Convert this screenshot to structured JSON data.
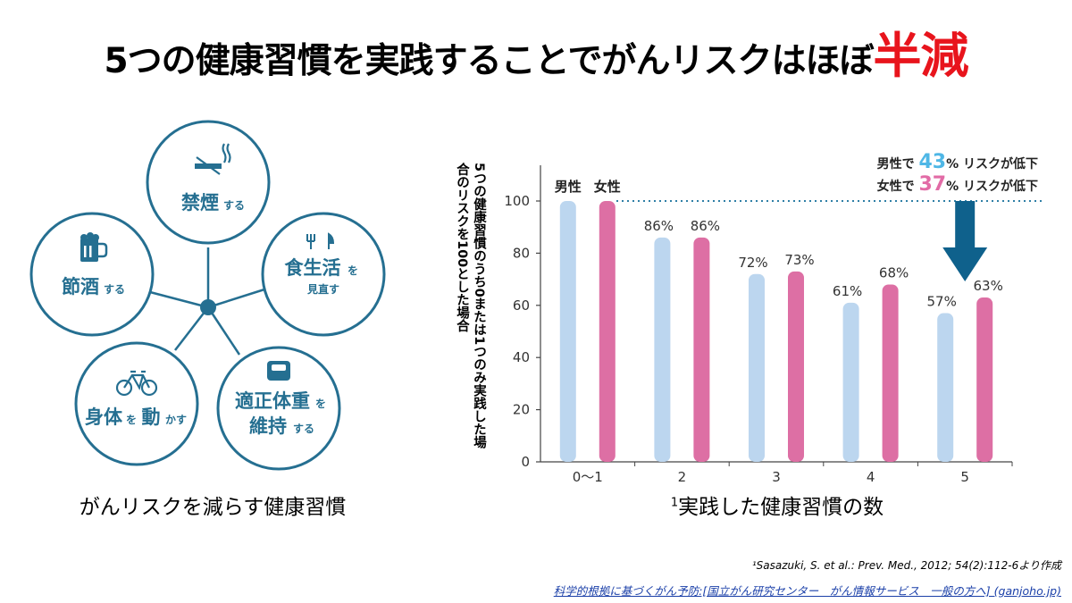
{
  "title": {
    "main": "5つの健康習慣を実践することでがんリスクはほぼ",
    "emphasis": "半減"
  },
  "diagram": {
    "caption": "がんリスクを減らす健康習慣",
    "habits": [
      {
        "main": "禁煙",
        "suffix": "する",
        "icon": "no-smoking-icon"
      },
      {
        "main": "食生活",
        "suffix": "を",
        "sub": "見直す",
        "icon": "fork-knife-icon"
      },
      {
        "main": "適正体重",
        "suffix": "を",
        "main2": "維持",
        "suffix2": "する",
        "icon": "scale-icon"
      },
      {
        "main": "身体",
        "suffix": "を",
        "main2": "動",
        "suffix2": "かす",
        "icon": "bicycle-icon"
      },
      {
        "main": "節酒",
        "suffix": "する",
        "icon": "beer-mug-icon"
      }
    ],
    "color": "#256f91"
  },
  "chart_data": {
    "type": "bar",
    "ylabel": "5つの健康習慣のうち0または1つのみ実践した場合のリスクを100とした場合",
    "xlabel": "実践した健康習慣の数",
    "xlabel_sup": "1",
    "categories": [
      "0〜1",
      "2",
      "3",
      "4",
      "5"
    ],
    "ylim": [
      0,
      100
    ],
    "yticks": [
      0,
      20,
      40,
      60,
      80,
      100
    ],
    "series": [
      {
        "name": "男性",
        "values": [
          100,
          86,
          72,
          61,
          57
        ],
        "labels": [
          "",
          "86%",
          "72%",
          "61%",
          "57%"
        ],
        "color": "#bcd6ef"
      },
      {
        "name": "女性",
        "values": [
          100,
          86,
          73,
          68,
          63
        ],
        "labels": [
          "",
          "86%",
          "73%",
          "68%",
          "63%"
        ],
        "color": "#dd6fa4"
      }
    ],
    "annotations": [
      {
        "prefix": "男性で",
        "value": "43",
        "suffix": "% リスクが低下",
        "color": "#4fb7e6"
      },
      {
        "prefix": "女性で",
        "value": "37",
        "suffix": "% リスクが低下",
        "color": "#e26ba6"
      }
    ],
    "arrow_color": "#0f618c",
    "grid": false,
    "legend": "top-left above first pair"
  },
  "reference": "¹Sasazuki, S. et al.: Prev. Med., 2012; 54(2):112-6より作成",
  "source_link": "科学的根拠に基づくがん予防:[国立がん研究センター　がん情報サービス　一般の方へ] (ganjoho.jp)"
}
